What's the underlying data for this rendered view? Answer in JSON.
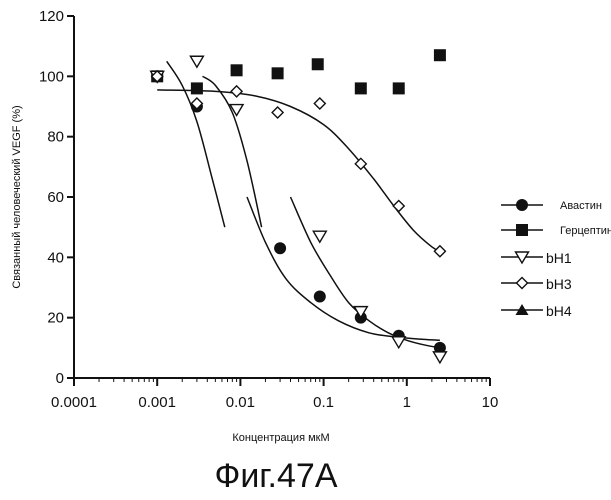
{
  "chart_data": {
    "type": "scatter",
    "title": "",
    "xlabel": "Концентрация мкМ",
    "ylabel": "Связанный человеческий VEGF (%)",
    "x_scale": "log",
    "xlim": [
      0.0001,
      10
    ],
    "ylim": [
      0,
      120
    ],
    "x_ticks": [
      {
        "value": 0.0001,
        "label": "0.0001"
      },
      {
        "value": 0.001,
        "label": "0.001"
      },
      {
        "value": 0.01,
        "label": "0.01"
      },
      {
        "value": 0.1,
        "label": "0.1"
      },
      {
        "value": 1,
        "label": "1"
      },
      {
        "value": 10,
        "label": "10"
      }
    ],
    "y_ticks": [
      {
        "value": 0,
        "label": "0"
      },
      {
        "value": 20,
        "label": "20"
      },
      {
        "value": 40,
        "label": "40"
      },
      {
        "value": 60,
        "label": "60"
      },
      {
        "value": 80,
        "label": "80"
      },
      {
        "value": 100,
        "label": "100"
      },
      {
        "value": 120,
        "label": "120"
      }
    ],
    "grid": false,
    "legend_position": "right",
    "series": [
      {
        "name": "Авастин",
        "marker": "circle-filled",
        "x": [
          0.001,
          0.003,
          0.03,
          0.09,
          0.28,
          0.8,
          2.5
        ],
        "y": [
          100,
          90,
          43,
          27,
          20,
          14,
          10
        ]
      },
      {
        "name": "Герцептин",
        "marker": "square-filled",
        "x": [
          0.001,
          0.003,
          0.009,
          0.028,
          0.085,
          0.28,
          0.8,
          2.5
        ],
        "y": [
          100,
          96,
          102,
          101,
          104,
          96,
          96,
          107
        ]
      },
      {
        "name": "bH1",
        "marker": "triangle-down-open",
        "x": [
          0.001,
          0.003,
          0.009,
          0.09,
          0.28,
          0.8,
          2.5
        ],
        "y": [
          100,
          105,
          89,
          47,
          22,
          12,
          7
        ]
      },
      {
        "name": "bH3",
        "marker": "diamond-open",
        "x": [
          0.001,
          0.003,
          0.009,
          0.028,
          0.09,
          0.28,
          0.8,
          2.5
        ],
        "y": [
          100,
          91,
          95,
          88,
          91,
          71,
          57,
          42
        ]
      },
      {
        "name": "bH4",
        "marker": "triangle-up-filled",
        "x": [],
        "y": []
      }
    ],
    "fit_curves": [
      {
        "x": [
          0.0013,
          0.002,
          0.003,
          0.0045,
          0.0065
        ],
        "y": [
          105,
          97,
          85,
          67,
          50
        ]
      },
      {
        "x": [
          0.0035,
          0.005,
          0.008,
          0.012,
          0.018
        ],
        "y": [
          100,
          97,
          88,
          72,
          50
        ]
      },
      {
        "x": [
          0.012,
          0.02,
          0.035,
          0.07,
          0.15,
          0.35,
          0.8,
          1.6,
          2.5
        ],
        "y": [
          60,
          45,
          33,
          25,
          19,
          15,
          13.5,
          12.8,
          12.5
        ]
      },
      {
        "x": [
          0.04,
          0.07,
          0.12,
          0.2,
          0.35,
          0.6,
          1.0,
          1.6,
          2.5
        ],
        "y": [
          60,
          45,
          34,
          25,
          19,
          15,
          12.5,
          11,
          10
        ]
      },
      {
        "x": [
          0.001,
          0.005,
          0.015,
          0.04,
          0.1,
          0.2,
          0.4,
          0.7,
          1.2,
          2.0,
          2.5
        ],
        "y": [
          95.5,
          95,
          93.5,
          90,
          84,
          76,
          66,
          57,
          49,
          43.5,
          42
        ]
      }
    ]
  },
  "caption": "Фиг.47А"
}
